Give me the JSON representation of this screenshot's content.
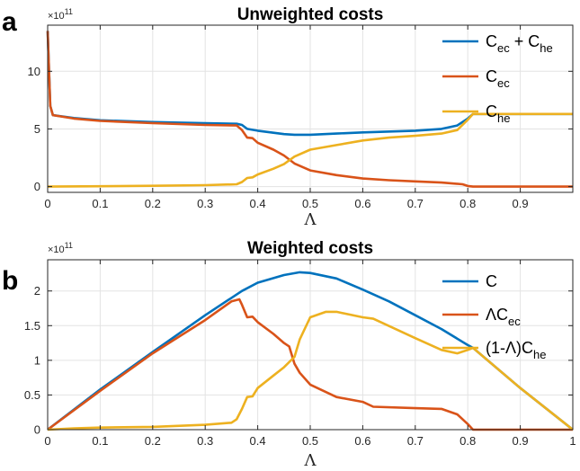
{
  "panels": [
    {
      "letter": "a"
    },
    {
      "letter": "b"
    }
  ],
  "chart_data": [
    {
      "type": "line",
      "title": "Unweighted costs",
      "xlabel": "Λ",
      "ylabel": "",
      "y_multiplier": "×10",
      "y_multiplier_exp": "11",
      "xlim": [
        0,
        1
      ],
      "ylim": [
        -0.5,
        14
      ],
      "xticks": [
        "0",
        "0.1",
        "0.2",
        "0.3",
        "0.4",
        "0.5",
        "0.6",
        "0.7",
        "0.8",
        "0.9"
      ],
      "xtick_values": [
        0,
        0.1,
        0.2,
        0.3,
        0.4,
        0.5,
        0.6,
        0.7,
        0.8,
        0.9
      ],
      "yticks": [
        "0",
        "5",
        "10"
      ],
      "ytick_values": [
        0,
        5,
        10
      ],
      "grid": true,
      "legend_position": "top-right",
      "series": [
        {
          "name": "Cec + Che",
          "legend": {
            "main": "C",
            "sub": "ec",
            "main2": " + C",
            "sub2": "he"
          },
          "color": "#0072BD",
          "points": [
            [
              0,
              13.5
            ],
            [
              0.005,
              7
            ],
            [
              0.01,
              6.2
            ],
            [
              0.05,
              5.95
            ],
            [
              0.1,
              5.75
            ],
            [
              0.2,
              5.6
            ],
            [
              0.3,
              5.5
            ],
            [
              0.36,
              5.45
            ],
            [
              0.37,
              5.35
            ],
            [
              0.38,
              5.0
            ],
            [
              0.4,
              4.85
            ],
            [
              0.45,
              4.55
            ],
            [
              0.47,
              4.5
            ],
            [
              0.5,
              4.5
            ],
            [
              0.55,
              4.6
            ],
            [
              0.6,
              4.7
            ],
            [
              0.7,
              4.85
            ],
            [
              0.75,
              5.0
            ],
            [
              0.78,
              5.3
            ],
            [
              0.8,
              5.9
            ],
            [
              0.81,
              6.3
            ],
            [
              1.0,
              6.3
            ]
          ]
        },
        {
          "name": "Cec",
          "legend": {
            "main": "C",
            "sub": "ec",
            "main2": "",
            "sub2": ""
          },
          "color": "#D95319",
          "points": [
            [
              0,
              13.5
            ],
            [
              0.005,
              7
            ],
            [
              0.01,
              6.2
            ],
            [
              0.05,
              5.9
            ],
            [
              0.1,
              5.7
            ],
            [
              0.2,
              5.5
            ],
            [
              0.3,
              5.35
            ],
            [
              0.36,
              5.3
            ],
            [
              0.37,
              4.9
            ],
            [
              0.38,
              4.25
            ],
            [
              0.39,
              4.2
            ],
            [
              0.4,
              3.8
            ],
            [
              0.43,
              3.2
            ],
            [
              0.45,
              2.7
            ],
            [
              0.47,
              2.0
            ],
            [
              0.5,
              1.4
            ],
            [
              0.55,
              1.0
            ],
            [
              0.6,
              0.7
            ],
            [
              0.65,
              0.55
            ],
            [
              0.7,
              0.45
            ],
            [
              0.75,
              0.35
            ],
            [
              0.79,
              0.2
            ],
            [
              0.8,
              0.05
            ],
            [
              0.81,
              0
            ],
            [
              1.0,
              0
            ]
          ]
        },
        {
          "name": "Che",
          "legend": {
            "main": "C",
            "sub": "he",
            "main2": "",
            "sub2": ""
          },
          "color": "#EDB120",
          "points": [
            [
              0,
              0
            ],
            [
              0.1,
              0.03
            ],
            [
              0.2,
              0.07
            ],
            [
              0.3,
              0.12
            ],
            [
              0.36,
              0.2
            ],
            [
              0.37,
              0.4
            ],
            [
              0.38,
              0.75
            ],
            [
              0.39,
              0.8
            ],
            [
              0.4,
              1.05
            ],
            [
              0.43,
              1.55
            ],
            [
              0.45,
              1.95
            ],
            [
              0.47,
              2.6
            ],
            [
              0.5,
              3.2
            ],
            [
              0.55,
              3.6
            ],
            [
              0.6,
              4.0
            ],
            [
              0.65,
              4.25
            ],
            [
              0.7,
              4.4
            ],
            [
              0.75,
              4.6
            ],
            [
              0.78,
              4.9
            ],
            [
              0.8,
              5.8
            ],
            [
              0.81,
              6.3
            ],
            [
              1.0,
              6.3
            ]
          ]
        }
      ]
    },
    {
      "type": "line",
      "title": "Weighted costs",
      "xlabel": "Λ",
      "ylabel": "",
      "y_multiplier": "×10",
      "y_multiplier_exp": "11",
      "xlim": [
        0,
        1
      ],
      "ylim": [
        0,
        2.45
      ],
      "xticks": [
        "0",
        "0.1",
        "0.2",
        "0.3",
        "0.4",
        "0.5",
        "0.6",
        "0.7",
        "0.8",
        "0.9",
        "1"
      ],
      "xtick_values": [
        0,
        0.1,
        0.2,
        0.3,
        0.4,
        0.5,
        0.6,
        0.7,
        0.8,
        0.9,
        1
      ],
      "yticks": [
        "0",
        "0.5",
        "1",
        "1.5",
        "2"
      ],
      "ytick_values": [
        0,
        0.5,
        1,
        1.5,
        2
      ],
      "grid": true,
      "legend_position": "top-right",
      "series": [
        {
          "name": "C",
          "legend": {
            "main": "C",
            "sub": "",
            "main2": "",
            "sub2": ""
          },
          "color": "#0072BD",
          "points": [
            [
              0,
              0
            ],
            [
              0.1,
              0.58
            ],
            [
              0.2,
              1.12
            ],
            [
              0.3,
              1.65
            ],
            [
              0.35,
              1.9
            ],
            [
              0.37,
              2.0
            ],
            [
              0.4,
              2.12
            ],
            [
              0.45,
              2.23
            ],
            [
              0.48,
              2.27
            ],
            [
              0.5,
              2.26
            ],
            [
              0.55,
              2.18
            ],
            [
              0.6,
              2.02
            ],
            [
              0.65,
              1.85
            ],
            [
              0.7,
              1.65
            ],
            [
              0.75,
              1.45
            ],
            [
              0.8,
              1.22
            ],
            [
              0.81,
              1.18
            ],
            [
              0.9,
              0.6
            ],
            [
              1.0,
              0
            ]
          ]
        },
        {
          "name": "ΛCec",
          "legend": {
            "main": "ΛC",
            "sub": "ec",
            "main2": "",
            "sub2": ""
          },
          "color": "#D95319",
          "points": [
            [
              0,
              0
            ],
            [
              0.1,
              0.56
            ],
            [
              0.2,
              1.1
            ],
            [
              0.3,
              1.58
            ],
            [
              0.35,
              1.85
            ],
            [
              0.365,
              1.88
            ],
            [
              0.37,
              1.8
            ],
            [
              0.38,
              1.62
            ],
            [
              0.39,
              1.63
            ],
            [
              0.4,
              1.55
            ],
            [
              0.43,
              1.38
            ],
            [
              0.45,
              1.25
            ],
            [
              0.46,
              1.2
            ],
            [
              0.47,
              0.95
            ],
            [
              0.48,
              0.82
            ],
            [
              0.5,
              0.65
            ],
            [
              0.55,
              0.47
            ],
            [
              0.6,
              0.4
            ],
            [
              0.62,
              0.33
            ],
            [
              0.7,
              0.31
            ],
            [
              0.75,
              0.3
            ],
            [
              0.78,
              0.22
            ],
            [
              0.8,
              0.08
            ],
            [
              0.81,
              0
            ],
            [
              1.0,
              0
            ]
          ]
        },
        {
          "name": "(1-Λ)Che",
          "legend": {
            "main": "(1-Λ)C",
            "sub": "he",
            "main2": "",
            "sub2": ""
          },
          "color": "#EDB120",
          "points": [
            [
              0,
              0
            ],
            [
              0.05,
              0.02
            ],
            [
              0.1,
              0.03
            ],
            [
              0.2,
              0.04
            ],
            [
              0.3,
              0.07
            ],
            [
              0.35,
              0.1
            ],
            [
              0.36,
              0.15
            ],
            [
              0.37,
              0.3
            ],
            [
              0.38,
              0.47
            ],
            [
              0.39,
              0.48
            ],
            [
              0.4,
              0.6
            ],
            [
              0.43,
              0.78
            ],
            [
              0.45,
              0.9
            ],
            [
              0.47,
              1.05
            ],
            [
              0.48,
              1.3
            ],
            [
              0.5,
              1.62
            ],
            [
              0.53,
              1.7
            ],
            [
              0.55,
              1.7
            ],
            [
              0.6,
              1.62
            ],
            [
              0.62,
              1.6
            ],
            [
              0.7,
              1.32
            ],
            [
              0.75,
              1.15
            ],
            [
              0.78,
              1.1
            ],
            [
              0.8,
              1.15
            ],
            [
              0.81,
              1.18
            ],
            [
              0.9,
              0.6
            ],
            [
              1.0,
              0
            ]
          ]
        }
      ]
    }
  ]
}
